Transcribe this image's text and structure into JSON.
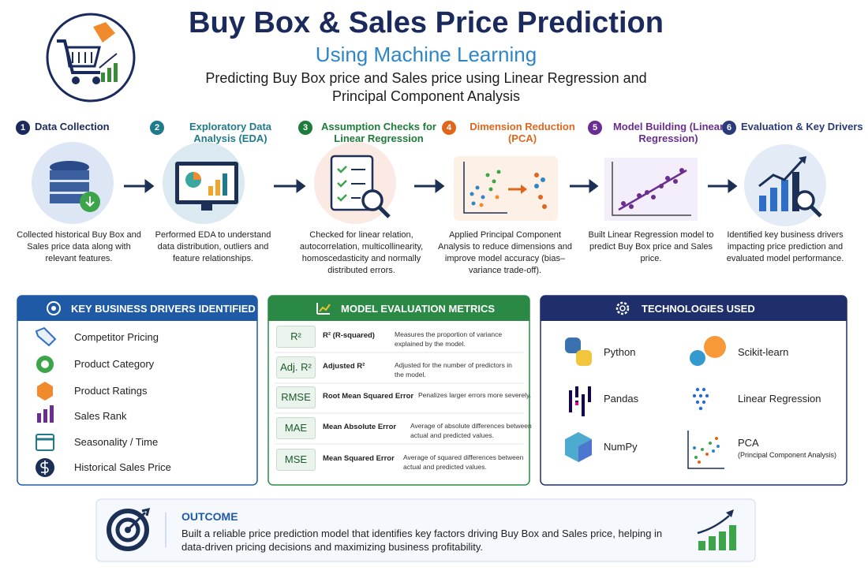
{
  "header": {
    "title": "Buy Box & Sales Price Prediction",
    "subtitle": "Using Machine Learning",
    "description": "Predicting Buy Box price and Sales price using Linear Regression and Principal Component Analysis"
  },
  "steps": [
    {
      "number": 1,
      "title": "Data Collection",
      "text": "Collected historical Buy Box and Sales price data along with relevant features."
    },
    {
      "number": 2,
      "title": "Exploratory Data Analysis (EDA)",
      "text": "Performed EDA to understand data distribution, outliers and feature relationships."
    },
    {
      "number": 3,
      "title": "Assumption Checks for Linear Regression",
      "text": "Checked for linear relation, autocorrelation, multicollinearity, homoscedasticity and normally distributed errors."
    },
    {
      "number": 4,
      "title": "Dimension Reduction (PCA)",
      "text": "Applied Principal Component Analysis to reduce dimensions and improve model accuracy (bias–variance trade-off)."
    },
    {
      "number": 5,
      "title": "Model Building (Linear Regression)",
      "text": "Built Linear Regression model to predict Buy Box price and Sales price."
    },
    {
      "number": 6,
      "title": "Evaluation & Key Drivers",
      "text": "Identified key business drivers impacting price prediction and evaluated model performance."
    }
  ],
  "drivers": {
    "title": "KEY BUSINESS DRIVERS IDENTIFIED",
    "items": [
      "Competitor Pricing",
      "Product Category",
      "Product Ratings",
      "Sales Rank",
      "Seasonality / Time",
      "Historical Sales Price"
    ]
  },
  "metrics": {
    "title": "MODEL EVALUATION METRICS",
    "rows": [
      {
        "abbr": "R²",
        "name": "R² (R-squared)",
        "description": "Measures the proportion of variance explained by the model."
      },
      {
        "abbr": "Adj. R²",
        "name": "Adjusted R²",
        "description": "Adjusted for the number of predictors in the model."
      },
      {
        "abbr": "RMSE",
        "name": "Root Mean Squared Error",
        "description": "Penalizes larger errors more severely."
      },
      {
        "abbr": "MAE",
        "name": "Mean Absolute Error",
        "description": "Average of absolute differences between actual and predicted values."
      },
      {
        "abbr": "MSE",
        "name": "Mean Squared Error",
        "description": "Average of squared differences between actual and predicted values."
      }
    ]
  },
  "technologies": {
    "title": "TECHNOLOGIES USED",
    "items": [
      {
        "name": "Python"
      },
      {
        "name": "Scikit-learn"
      },
      {
        "name": "Pandas"
      },
      {
        "name": "Linear Regression"
      },
      {
        "name": "NumPy"
      },
      {
        "name": "PCA",
        "note": "(Principal Component Analysis)"
      }
    ]
  },
  "outcome": {
    "title": "OUTCOME",
    "text": "Built a reliable price prediction model that identifies key factors driving Buy Box and Sales price, helping in data-driven pricing decisions and maximizing business profitability."
  }
}
